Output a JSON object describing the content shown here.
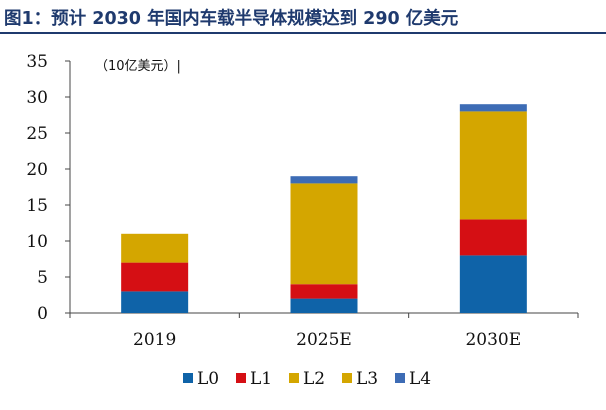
{
  "title": "图1：预计 2030 年国内车载半导体规模达到 290 亿美元",
  "chart_data": {
    "type": "bar",
    "stacked": true,
    "unit_label": "（10亿美元）|",
    "categories": [
      "2019",
      "2025E",
      "2030E"
    ],
    "series": [
      {
        "name": "L0",
        "color": "#0f63a8",
        "values": [
          3,
          2,
          8
        ]
      },
      {
        "name": "L1",
        "color": "#d50f14",
        "values": [
          4,
          2,
          5
        ]
      },
      {
        "name": "L2",
        "color": "#d4a600",
        "values": [
          4,
          14,
          15
        ]
      },
      {
        "name": "L3",
        "color": "#d4a600",
        "values": [
          0,
          0,
          0
        ]
      },
      {
        "name": "L4",
        "color": "#3d6cb5",
        "values": [
          0,
          1,
          1
        ]
      }
    ],
    "ylim": [
      0,
      35
    ],
    "yticks": [
      0,
      5,
      10,
      15,
      20,
      25,
      30,
      35
    ],
    "legend_position": "bottom"
  }
}
